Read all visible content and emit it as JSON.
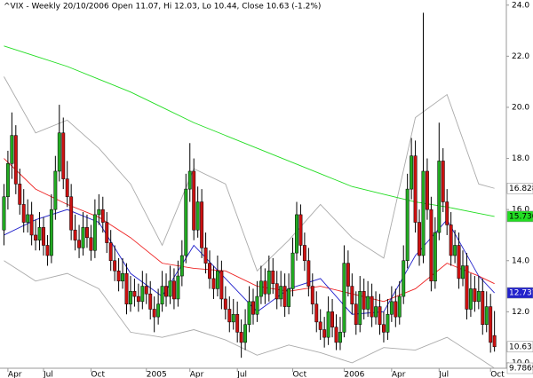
{
  "chart_data": {
    "type": "candlestick",
    "title": "^VIX - Weekly 20/10/2006 Open 11.07, Hi 12.03, Lo 10.44, Close 10.63 (-1.2%)",
    "xlim": [
      -1,
      127
    ],
    "xticks": [
      {
        "value": 1,
        "label": "Apr"
      },
      {
        "value": 10,
        "label": "Jul"
      },
      {
        "value": 22,
        "label": "Oct"
      },
      {
        "value": 36,
        "label": "2005"
      },
      {
        "value": 47,
        "label": "Apr"
      },
      {
        "value": 59,
        "label": "Jul"
      },
      {
        "value": 73,
        "label": "Oct"
      },
      {
        "value": 86,
        "label": "2006"
      },
      {
        "value": 98,
        "label": "Apr"
      },
      {
        "value": 110,
        "label": "Jul"
      },
      {
        "value": 123,
        "label": "Oct"
      }
    ],
    "ylim": [
      9.79,
      24.2
    ],
    "yticks": [
      {
        "value": 10,
        "label": "10.0"
      },
      {
        "value": 12,
        "label": "12.0"
      },
      {
        "value": 14,
        "label": "14.0"
      },
      {
        "value": 16,
        "label": "16.0"
      },
      {
        "value": 18,
        "label": "18.0"
      },
      {
        "value": 20,
        "label": "20.0"
      },
      {
        "value": 22,
        "label": "22.0"
      },
      {
        "value": 24,
        "label": "24.0"
      }
    ],
    "up_color": "#22aa22",
    "down_color": "#cc1111",
    "ohlc": [
      [
        15.2,
        17.0,
        14.6,
        16.5
      ],
      [
        16.5,
        18.3,
        16.0,
        17.8
      ],
      [
        17.8,
        19.8,
        17.2,
        18.9
      ],
      [
        18.9,
        19.3,
        16.6,
        17.0
      ],
      [
        17.0,
        17.6,
        15.8,
        16.2
      ],
      [
        16.2,
        16.8,
        15.1,
        15.5
      ],
      [
        15.5,
        16.4,
        15.1,
        15.8
      ],
      [
        15.8,
        16.3,
        14.6,
        15.0
      ],
      [
        15.0,
        15.6,
        14.4,
        14.8
      ],
      [
        14.8,
        15.9,
        14.4,
        15.3
      ],
      [
        15.3,
        15.7,
        14.2,
        14.6
      ],
      [
        14.6,
        15.0,
        13.8,
        14.2
      ],
      [
        14.2,
        16.6,
        13.9,
        16.0
      ],
      [
        16.0,
        18.1,
        15.6,
        17.5
      ],
      [
        17.5,
        20.1,
        17.1,
        19.0
      ],
      [
        19.0,
        19.6,
        16.8,
        17.2
      ],
      [
        17.2,
        17.9,
        16.1,
        16.5
      ],
      [
        16.5,
        17.0,
        14.8,
        15.2
      ],
      [
        15.2,
        15.8,
        14.4,
        14.8
      ],
      [
        14.8,
        15.4,
        14.1,
        14.5
      ],
      [
        14.5,
        15.9,
        14.2,
        15.3
      ],
      [
        15.3,
        15.8,
        14.5,
        14.9
      ],
      [
        14.9,
        15.4,
        14.0,
        14.4
      ],
      [
        14.4,
        16.4,
        14.1,
        15.8
      ],
      [
        15.8,
        16.6,
        15.4,
        16.0
      ],
      [
        16.0,
        16.5,
        15.1,
        15.5
      ],
      [
        15.5,
        15.9,
        14.3,
        14.7
      ],
      [
        14.7,
        15.2,
        13.6,
        14.0
      ],
      [
        14.0,
        14.6,
        13.2,
        13.6
      ],
      [
        13.6,
        14.1,
        12.8,
        13.2
      ],
      [
        13.2,
        14.1,
        12.9,
        13.5
      ],
      [
        13.5,
        13.9,
        11.9,
        12.3
      ],
      [
        12.3,
        13.4,
        12.0,
        12.8
      ],
      [
        12.8,
        13.3,
        12.2,
        12.6
      ],
      [
        12.6,
        13.1,
        12.0,
        12.4
      ],
      [
        12.4,
        13.6,
        12.1,
        13.0
      ],
      [
        13.0,
        13.5,
        12.3,
        12.7
      ],
      [
        12.7,
        13.2,
        11.7,
        12.1
      ],
      [
        12.1,
        12.6,
        11.2,
        11.8
      ],
      [
        11.8,
        12.9,
        11.5,
        12.3
      ],
      [
        12.3,
        13.6,
        12.0,
        13.0
      ],
      [
        13.0,
        13.5,
        12.2,
        12.6
      ],
      [
        12.6,
        13.8,
        12.3,
        13.2
      ],
      [
        13.2,
        13.7,
        12.1,
        12.5
      ],
      [
        12.5,
        14.0,
        12.2,
        13.4
      ],
      [
        13.4,
        14.8,
        13.0,
        14.2
      ],
      [
        14.2,
        17.4,
        13.9,
        16.8
      ],
      [
        16.8,
        18.6,
        16.3,
        17.5
      ],
      [
        17.5,
        18.0,
        14.8,
        15.2
      ],
      [
        15.2,
        16.9,
        14.9,
        16.3
      ],
      [
        16.3,
        16.8,
        14.1,
        14.5
      ],
      [
        14.5,
        15.1,
        13.5,
        13.9
      ],
      [
        13.9,
        14.4,
        12.9,
        13.3
      ],
      [
        13.3,
        13.8,
        12.5,
        12.9
      ],
      [
        12.9,
        14.2,
        12.6,
        13.6
      ],
      [
        13.6,
        14.0,
        12.1,
        12.5
      ],
      [
        12.5,
        13.0,
        11.7,
        12.1
      ],
      [
        12.1,
        12.6,
        11.2,
        11.6
      ],
      [
        11.6,
        12.5,
        11.3,
        11.9
      ],
      [
        11.9,
        12.4,
        10.8,
        11.2
      ],
      [
        11.2,
        11.7,
        10.2,
        10.8
      ],
      [
        10.8,
        12.1,
        10.5,
        11.5
      ],
      [
        11.5,
        13.0,
        11.2,
        12.4
      ],
      [
        12.4,
        12.9,
        11.5,
        11.9
      ],
      [
        11.9,
        13.2,
        11.6,
        12.6
      ],
      [
        12.6,
        13.8,
        12.3,
        13.2
      ],
      [
        13.2,
        13.7,
        12.3,
        12.7
      ],
      [
        12.7,
        14.2,
        12.4,
        13.6
      ],
      [
        13.6,
        14.1,
        12.7,
        13.1
      ],
      [
        13.1,
        13.6,
        12.1,
        12.5
      ],
      [
        12.5,
        13.6,
        12.2,
        13.0
      ],
      [
        13.0,
        13.5,
        11.8,
        12.2
      ],
      [
        12.2,
        13.5,
        11.9,
        12.9
      ],
      [
        12.9,
        14.9,
        12.6,
        14.3
      ],
      [
        14.3,
        16.3,
        14.0,
        15.8
      ],
      [
        15.8,
        16.2,
        14.2,
        14.6
      ],
      [
        14.6,
        15.1,
        13.6,
        14.0
      ],
      [
        14.0,
        14.5,
        12.6,
        13.0
      ],
      [
        13.0,
        13.5,
        11.9,
        12.3
      ],
      [
        12.3,
        12.8,
        11.2,
        11.6
      ],
      [
        11.6,
        12.1,
        10.9,
        11.3
      ],
      [
        11.3,
        11.8,
        10.6,
        11.0
      ],
      [
        11.0,
        12.6,
        10.7,
        12.0
      ],
      [
        12.0,
        12.5,
        11.0,
        11.4
      ],
      [
        11.4,
        11.9,
        10.5,
        10.8
      ],
      [
        10.8,
        11.8,
        10.5,
        11.2
      ],
      [
        11.2,
        14.6,
        11.0,
        13.9
      ],
      [
        13.9,
        14.4,
        12.6,
        13.0
      ],
      [
        13.0,
        13.5,
        11.9,
        12.3
      ],
      [
        12.3,
        12.8,
        11.1,
        11.5
      ],
      [
        11.5,
        13.4,
        11.2,
        12.8
      ],
      [
        12.8,
        13.3,
        11.7,
        12.1
      ],
      [
        12.1,
        13.2,
        11.8,
        12.6
      ],
      [
        12.6,
        13.1,
        11.4,
        11.8
      ],
      [
        11.8,
        12.8,
        11.5,
        12.2
      ],
      [
        12.2,
        12.7,
        11.1,
        11.5
      ],
      [
        11.5,
        12.0,
        10.8,
        11.2
      ],
      [
        11.2,
        12.5,
        10.9,
        11.9
      ],
      [
        11.9,
        13.0,
        11.6,
        12.4
      ],
      [
        12.4,
        12.9,
        11.4,
        11.8
      ],
      [
        11.8,
        13.2,
        11.5,
        12.6
      ],
      [
        12.6,
        14.6,
        12.3,
        14.0
      ],
      [
        14.0,
        17.4,
        13.7,
        16.8
      ],
      [
        16.8,
        18.8,
        16.4,
        18.1
      ],
      [
        18.1,
        18.7,
        15.1,
        15.5
      ],
      [
        15.5,
        16.0,
        13.8,
        14.2
      ],
      [
        14.2,
        23.7,
        13.9,
        17.5
      ],
      [
        17.5,
        18.0,
        15.6,
        16.0
      ],
      [
        16.0,
        16.5,
        12.8,
        13.2
      ],
      [
        13.2,
        15.7,
        12.9,
        15.1
      ],
      [
        15.1,
        19.4,
        14.8,
        17.9
      ],
      [
        17.9,
        18.4,
        15.9,
        16.3
      ],
      [
        16.3,
        16.8,
        15.0,
        15.4
      ],
      [
        15.4,
        15.9,
        13.8,
        14.2
      ],
      [
        14.2,
        15.2,
        13.9,
        14.6
      ],
      [
        14.6,
        15.1,
        12.9,
        13.3
      ],
      [
        13.3,
        14.4,
        13.0,
        13.8
      ],
      [
        13.8,
        14.3,
        11.7,
        12.1
      ],
      [
        12.1,
        13.5,
        11.8,
        12.9
      ],
      [
        12.9,
        13.4,
        12.0,
        12.4
      ],
      [
        12.4,
        13.4,
        12.1,
        12.8
      ],
      [
        12.8,
        13.3,
        11.1,
        11.5
      ],
      [
        11.5,
        12.8,
        11.2,
        12.2
      ],
      [
        12.2,
        12.7,
        10.4,
        10.8
      ],
      [
        11.07,
        12.03,
        10.44,
        10.63
      ]
    ],
    "overlays": [
      {
        "color": "#aaaaaa",
        "label_bg": "#ffffff",
        "label_fg": "#000000",
        "end_label": "16.8287",
        "x": [
          0,
          8,
          16,
          24,
          32,
          40,
          48,
          56,
          64,
          72,
          80,
          88,
          96,
          104,
          112,
          120,
          124
        ],
        "values": [
          21.2,
          19.0,
          19.5,
          18.4,
          17.0,
          14.6,
          17.6,
          17.0,
          13.6,
          14.8,
          16.2,
          14.9,
          14.1,
          19.6,
          20.5,
          17.0,
          16.83
        ]
      },
      {
        "color": "#aaaaaa",
        "label_bg": "#ffffff",
        "label_fg": "#000000",
        "end_label": "9.78695",
        "x": [
          0,
          8,
          16,
          24,
          32,
          40,
          48,
          56,
          64,
          72,
          80,
          88,
          96,
          104,
          112,
          120,
          124
        ],
        "values": [
          14.0,
          13.2,
          13.5,
          12.9,
          11.2,
          11.0,
          11.3,
          10.9,
          10.3,
          10.7,
          10.4,
          10.0,
          10.6,
          10.5,
          11.0,
          10.2,
          9.79
        ]
      },
      {
        "color": "#22dd22",
        "label_bg": "#22dd22",
        "label_fg": "#000000",
        "end_label": "15.7305",
        "x": [
          0,
          8,
          16,
          24,
          32,
          40,
          48,
          56,
          64,
          72,
          80,
          88,
          96,
          104,
          112,
          120,
          124
        ],
        "values": [
          22.4,
          22.0,
          21.6,
          21.1,
          20.6,
          20.0,
          19.4,
          18.9,
          18.4,
          17.9,
          17.4,
          16.9,
          16.6,
          16.3,
          16.1,
          15.85,
          15.73
        ]
      },
      {
        "color": "#ee2222",
        "x": [
          0,
          8,
          16,
          24,
          32,
          40,
          48,
          56,
          64,
          72,
          80,
          88,
          96,
          104,
          112,
          120,
          124
        ],
        "values": [
          18.0,
          16.8,
          16.2,
          15.7,
          14.9,
          13.9,
          13.7,
          13.6,
          13.0,
          12.8,
          13.0,
          12.7,
          12.4,
          12.9,
          13.9,
          13.4,
          13.1
        ]
      },
      {
        "color": "#2222cc",
        "label_bg": "#2222cc",
        "label_fg": "#ffffff",
        "end_label": "12.7373",
        "x": [
          0,
          8,
          16,
          24,
          32,
          40,
          48,
          56,
          64,
          72,
          80,
          88,
          96,
          104,
          112,
          120,
          124
        ],
        "values": [
          15.0,
          15.6,
          16.0,
          15.5,
          13.5,
          12.6,
          14.6,
          13.3,
          12.0,
          12.9,
          13.3,
          11.9,
          12.0,
          14.2,
          15.6,
          13.4,
          12.74
        ]
      }
    ]
  }
}
